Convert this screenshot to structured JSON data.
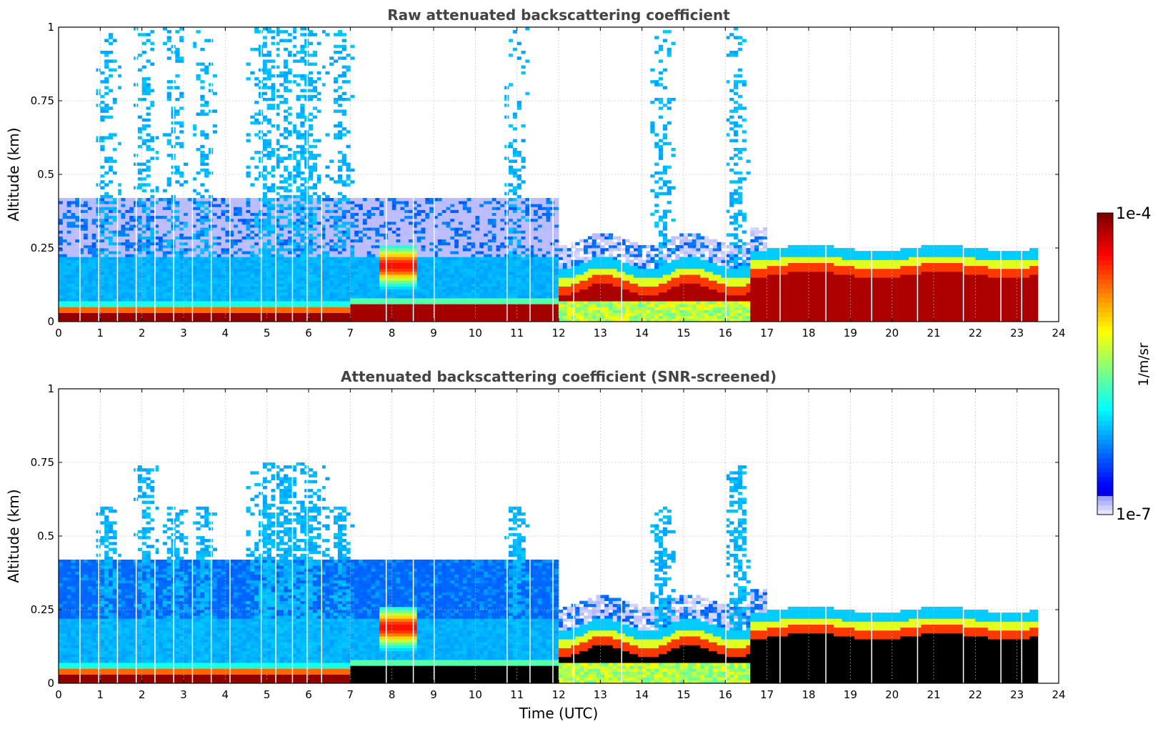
{
  "chart_data": [
    {
      "type": "heatmap",
      "title": "Raw attenuated backscattering coefficient",
      "xlabel": "",
      "ylabel": "Altitude (km)",
      "xlim": [
        0,
        24
      ],
      "ylim": [
        0,
        1
      ],
      "x_ticks": [
        "0",
        "1",
        "2",
        "3",
        "4",
        "5",
        "6",
        "7",
        "8",
        "9",
        "10",
        "11",
        "12",
        "13",
        "14",
        "15",
        "16",
        "17",
        "18",
        "19",
        "20",
        "21",
        "22",
        "23",
        "24"
      ],
      "y_ticks": [
        "0",
        "0.25",
        "0.5",
        "0.75",
        "1"
      ],
      "grid": true,
      "data_end_time": 23.5,
      "layers": [
        {
          "time_start": 0.0,
          "time_end": 7.0,
          "altitude_top": 0.05,
          "level": "high"
        },
        {
          "time_start": 0.0,
          "time_end": 12.0,
          "altitude_top": 0.22,
          "level": "low"
        },
        {
          "time_start": 7.8,
          "time_end": 8.5,
          "altitude_top": 0.25,
          "level": "high"
        },
        {
          "time_start": 12.0,
          "time_end": 16.5,
          "altitude_top": 0.18,
          "level": "high"
        },
        {
          "time_start": 16.8,
          "time_end": 23.5,
          "altitude_top": 0.23,
          "level": "high"
        }
      ],
      "plumes": [
        {
          "time": 1.2,
          "altitude_top": 1.0
        },
        {
          "time": 2.1,
          "altitude_top": 1.0
        },
        {
          "time": 2.8,
          "altitude_top": 1.0
        },
        {
          "time": 5.5,
          "altitude_top": 1.0
        },
        {
          "time": 6.8,
          "altitude_top": 1.0
        },
        {
          "time": 11.0,
          "altitude_top": 1.0
        },
        {
          "time": 16.3,
          "altitude_top": 1.0
        }
      ]
    },
    {
      "type": "heatmap",
      "title": "Attenuated backscattering coefficient (SNR-screened)",
      "xlabel": "Time (UTC)",
      "ylabel": "Altitude (km)",
      "xlim": [
        0,
        24
      ],
      "ylim": [
        0,
        1
      ],
      "x_ticks": [
        "0",
        "1",
        "2",
        "3",
        "4",
        "5",
        "6",
        "7",
        "8",
        "9",
        "10",
        "11",
        "12",
        "13",
        "14",
        "15",
        "16",
        "17",
        "18",
        "19",
        "20",
        "21",
        "22",
        "23",
        "24"
      ],
      "y_ticks": [
        "0",
        "0.25",
        "0.5",
        "0.75",
        "1"
      ],
      "grid": true,
      "data_end_time": 23.5,
      "saturated_color": "#000000",
      "layers": [
        {
          "time_start": 0.0,
          "time_end": 7.0,
          "altitude_top": 0.05,
          "level": "high"
        },
        {
          "time_start": 0.0,
          "time_end": 12.0,
          "altitude_top": 0.38,
          "level": "low"
        },
        {
          "time_start": 12.0,
          "time_end": 16.5,
          "altitude_top": 0.18,
          "level": "saturated"
        },
        {
          "time_start": 16.8,
          "time_end": 23.5,
          "altitude_top": 0.22,
          "level": "saturated"
        }
      ],
      "plumes": [
        {
          "time": 2.1,
          "altitude_top": 0.76
        },
        {
          "time": 5.5,
          "altitude_top": 0.73
        },
        {
          "time": 6.8,
          "altitude_top": 0.6
        },
        {
          "time": 16.3,
          "altitude_top": 0.75
        }
      ]
    }
  ],
  "colorbar": {
    "label": "1/m/sr",
    "max_label": "1e-4",
    "min_label": "1e-7",
    "scale": "log",
    "colormap": "jet",
    "min_value": 1e-07,
    "max_value": 0.0001
  }
}
